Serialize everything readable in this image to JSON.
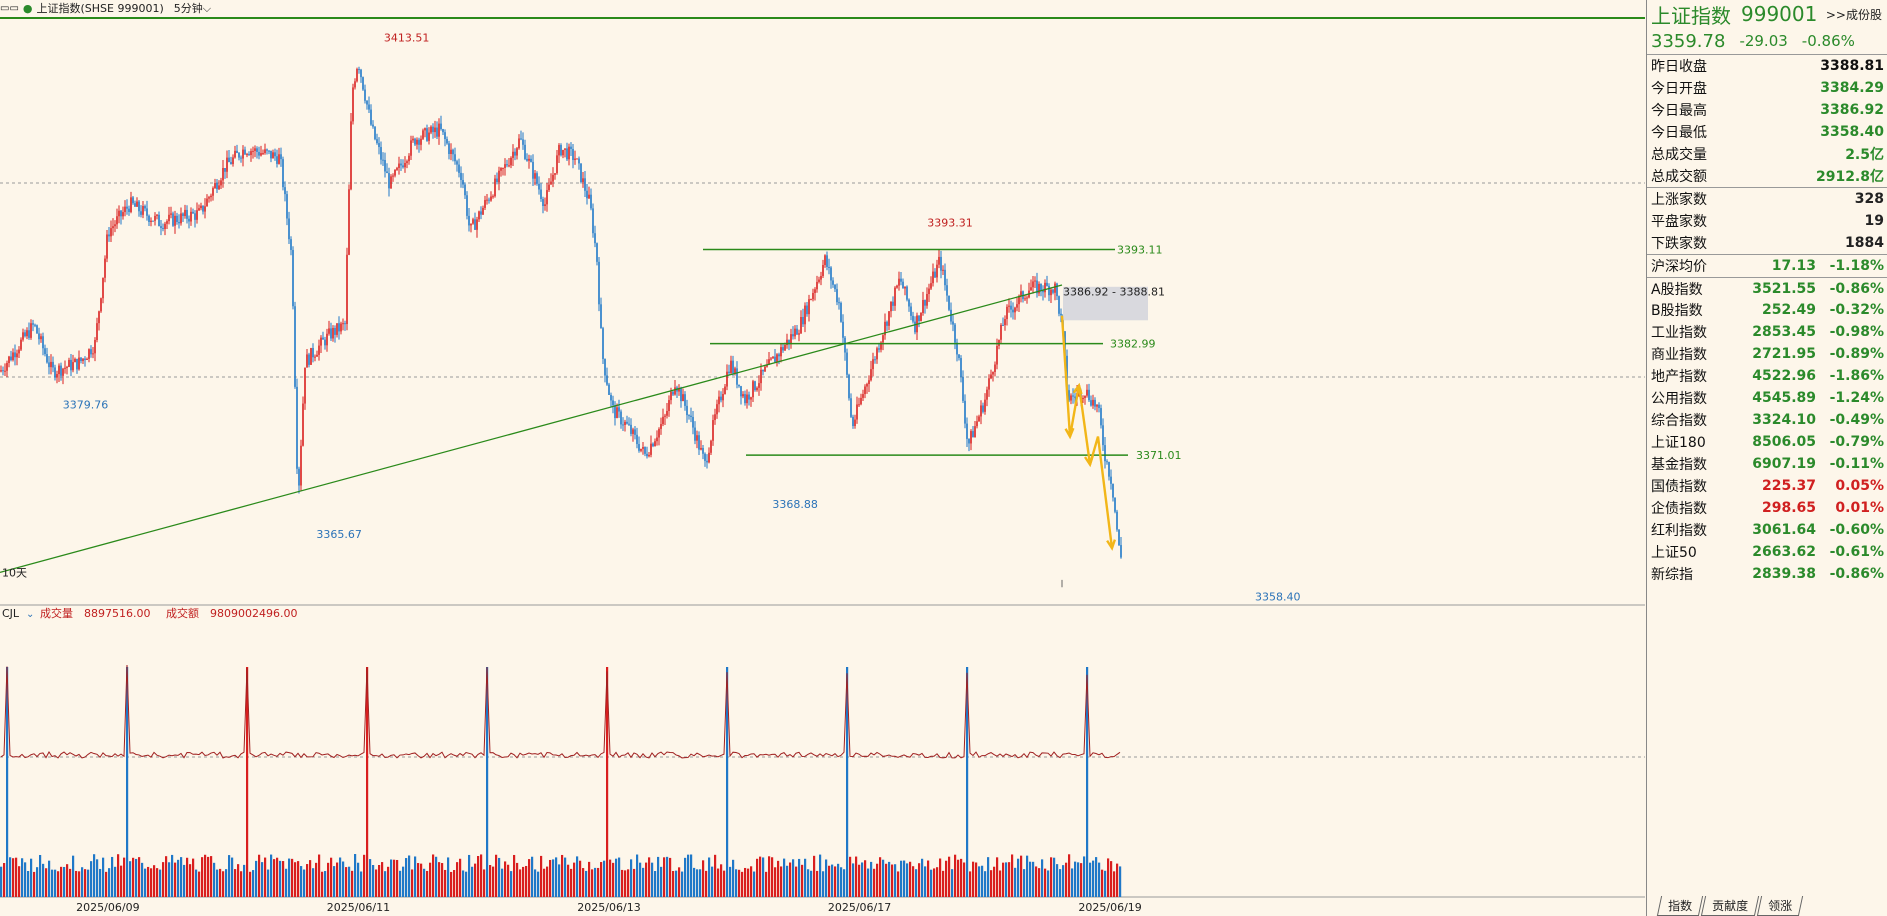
{
  "header": {
    "icon": "multi-window-icon",
    "title": "上证指数(SHSE 999001)",
    "period": "5分钟"
  },
  "chart_data": {
    "type": "candlestick",
    "title": "上证指数(SHSE 999001)",
    "period": "5分钟",
    "x_ticks": [
      "2025/06/09",
      "2025/06/11",
      "2025/06/13",
      "2025/06/17",
      "2025/06/19"
    ],
    "ylim": [
      3355,
      3418
    ],
    "price_keypoints": [
      [
        0,
        3380
      ],
      [
        20,
        3383
      ],
      [
        34,
        3385
      ],
      [
        52,
        3380
      ],
      [
        80,
        3381
      ],
      [
        95,
        3383
      ],
      [
        108,
        3395
      ],
      [
        130,
        3398
      ],
      [
        160,
        3396
      ],
      [
        200,
        3397
      ],
      [
        225,
        3402
      ],
      [
        245,
        3404
      ],
      [
        280,
        3403
      ],
      [
        292,
        3392
      ],
      [
        298,
        3366
      ],
      [
        305,
        3381
      ],
      [
        330,
        3384
      ],
      [
        345,
        3385
      ],
      [
        352,
        3410
      ],
      [
        358,
        3413.51
      ],
      [
        372,
        3406
      ],
      [
        390,
        3400
      ],
      [
        415,
        3405
      ],
      [
        440,
        3406
      ],
      [
        462,
        3401
      ],
      [
        470,
        3395
      ],
      [
        495,
        3400
      ],
      [
        520,
        3405
      ],
      [
        545,
        3398
      ],
      [
        560,
        3404
      ],
      [
        575,
        3403
      ],
      [
        590,
        3398
      ],
      [
        597,
        3392
      ],
      [
        602,
        3382
      ],
      [
        612,
        3376
      ],
      [
        628,
        3374
      ],
      [
        645,
        3371
      ],
      [
        665,
        3375
      ],
      [
        675,
        3379
      ],
      [
        690,
        3375
      ],
      [
        705,
        3370
      ],
      [
        715,
        3375
      ],
      [
        730,
        3381
      ],
      [
        745,
        3377
      ],
      [
        765,
        3380
      ],
      [
        800,
        3385
      ],
      [
        825,
        3392
      ],
      [
        840,
        3387
      ],
      [
        852,
        3374
      ],
      [
        870,
        3380
      ],
      [
        900,
        3390
      ],
      [
        915,
        3385
      ],
      [
        940,
        3392
      ],
      [
        958,
        3382
      ],
      [
        968,
        3372
      ],
      [
        985,
        3377
      ],
      [
        1005,
        3386
      ],
      [
        1030,
        3389
      ],
      [
        1055,
        3389
      ],
      [
        1062,
        3385
      ],
      [
        1068,
        3377
      ],
      [
        1085,
        3378
      ],
      [
        1098,
        3376
      ],
      [
        1105,
        3371
      ],
      [
        1112,
        3368
      ],
      [
        1120,
        3360
      ]
    ],
    "annotations": [
      {
        "text": "3413.51",
        "color": "red"
      },
      {
        "text": "3393.31",
        "color": "red"
      },
      {
        "text": "3379.76",
        "color": "blue"
      },
      {
        "text": "3365.67",
        "color": "blue"
      },
      {
        "text": "3368.88",
        "color": "blue"
      },
      {
        "text": "3358.40",
        "color": "blue"
      }
    ],
    "horizontal_lines": [
      {
        "label": "3393.11",
        "y": 3393.11
      },
      {
        "label": "3382.99",
        "y": 3382.99
      },
      {
        "label": "3371.01",
        "y": 3371.01
      }
    ],
    "trend_line": {
      "start": [
        0,
        3358.4
      ],
      "end": [
        1062,
        3389.3
      ]
    },
    "range_box_label": "3386.92 - 3388.81",
    "period_marker": "10天",
    "volume": {
      "indicator": "CJL",
      "volume_label": "成交量",
      "volume_value": "8897516.00",
      "amount_label": "成交额",
      "amount_value": "9809002496.00",
      "day_peaks": [
        28,
        50,
        40,
        55,
        55,
        48,
        52,
        45,
        42,
        38
      ]
    }
  },
  "side_panel": {
    "name": "上证指数",
    "code": "999001",
    "link": ">>成份股",
    "price": "3359.78",
    "change": "-29.03",
    "change_pct": "-0.86%",
    "quotes": [
      {
        "k": "昨日收盘",
        "v": "3388.81",
        "c": "#111"
      },
      {
        "k": "今日开盘",
        "v": "3384.29",
        "c": "#2b8a2b"
      },
      {
        "k": "今日最高",
        "v": "3386.92",
        "c": "#2b8a2b"
      },
      {
        "k": "今日最低",
        "v": "3358.40",
        "c": "#2b8a2b"
      },
      {
        "k": "总成交量",
        "v": "2.5亿",
        "c": "#2b8a2b"
      },
      {
        "k": "总成交额",
        "v": "2912.8亿",
        "c": "#2b8a2b"
      }
    ],
    "breadth": [
      {
        "k": "上涨家数",
        "v": "328"
      },
      {
        "k": "平盘家数",
        "v": "19"
      },
      {
        "k": "下跌家数",
        "v": "1884"
      }
    ],
    "indices": [
      {
        "k": "沪深均价",
        "v": "17.13",
        "p": "-1.18%",
        "c": "#2b8a2b"
      },
      {
        "k": "A股指数",
        "v": "3521.55",
        "p": "-0.86%",
        "c": "#2b8a2b"
      },
      {
        "k": "B股指数",
        "v": "252.49",
        "p": "-0.32%",
        "c": "#2b8a2b"
      },
      {
        "k": "工业指数",
        "v": "2853.45",
        "p": "-0.98%",
        "c": "#2b8a2b"
      },
      {
        "k": "商业指数",
        "v": "2721.95",
        "p": "-0.89%",
        "c": "#2b8a2b"
      },
      {
        "k": "地产指数",
        "v": "4522.96",
        "p": "-1.86%",
        "c": "#2b8a2b"
      },
      {
        "k": "公用指数",
        "v": "4545.89",
        "p": "-1.24%",
        "c": "#2b8a2b"
      },
      {
        "k": "综合指数",
        "v": "3324.10",
        "p": "-0.49%",
        "c": "#2b8a2b"
      },
      {
        "k": "上证180",
        "v": "8506.05",
        "p": "-0.79%",
        "c": "#2b8a2b"
      },
      {
        "k": "基金指数",
        "v": "6907.19",
        "p": "-0.11%",
        "c": "#2b8a2b"
      },
      {
        "k": "国债指数",
        "v": "225.37",
        "p": "0.05%",
        "c": "#d02020"
      },
      {
        "k": "企债指数",
        "v": "298.65",
        "p": "0.01%",
        "c": "#d02020"
      },
      {
        "k": "红利指数",
        "v": "3061.64",
        "p": "-0.60%",
        "c": "#2b8a2b"
      },
      {
        "k": "上证50",
        "v": "2663.62",
        "p": "-0.61%",
        "c": "#2b8a2b"
      },
      {
        "k": "新综指",
        "v": "2839.38",
        "p": "-0.86%",
        "c": "#2b8a2b"
      }
    ],
    "tabs": [
      "指数",
      "贡献度",
      "领涨"
    ]
  },
  "colors": {
    "up": "#d91e1e",
    "down": "#1f78c8",
    "line": "#2a8a1a",
    "arrow": "#f2b619",
    "bg": "#fdf6ea"
  }
}
